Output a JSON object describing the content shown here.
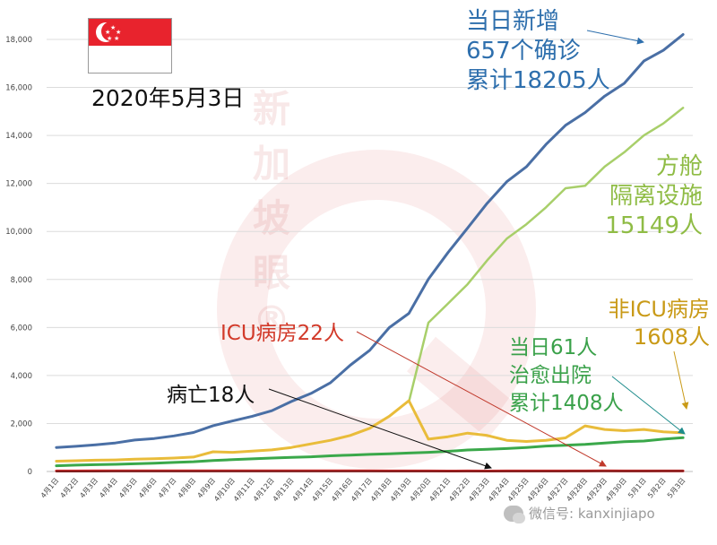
{
  "date_label": "2020年5月3日",
  "watermark": "新加坡眼®",
  "wechat_label": "微信号: kanxinjiapo",
  "annotations": {
    "total": [
      "当日新增",
      "657个确诊",
      "累计18205人"
    ],
    "dorm": [
      "方舱",
      "隔离设施",
      "15149人"
    ],
    "non_icu": [
      "非ICU病房",
      "1608人"
    ],
    "icu": "ICU病房22人",
    "discharged": [
      "当日61人",
      "治愈出院",
      "累计1408人"
    ],
    "deaths": "病亡18人"
  },
  "colors": {
    "total": "#4a6fa5",
    "dorm": "#a8cf6a",
    "non_icu": "#e9bc3a",
    "icu": "#d9302f",
    "discharged": "#3aa84a",
    "deaths": "#7a1a1a",
    "annotation_blue": "#2e6fad",
    "annotation_green": "#8fbc45",
    "annotation_gold": "#c99a17",
    "annotation_red": "#d23a2a",
    "annotation_discharged": "#3aa14a"
  },
  "chart_data": {
    "type": "line",
    "title": "",
    "xlabel": "",
    "ylabel": "",
    "ylim": [
      0,
      18000
    ],
    "yticks": [
      "0",
      "2,000",
      "4,000",
      "6,000",
      "8,000",
      "10,000",
      "12,000",
      "14,000",
      "16,000",
      "18,000"
    ],
    "grid": true,
    "categories": [
      "4月1日",
      "4月2日",
      "4月3日",
      "4月4日",
      "4月5日",
      "4月6日",
      "4月7日",
      "4月8日",
      "4月9日",
      "4月10日",
      "4月11日",
      "4月12日",
      "4月13日",
      "4月14日",
      "4月15日",
      "4月16日",
      "4月17日",
      "4月18日",
      "4月19日",
      "4月20日",
      "4月21日",
      "4月22日",
      "4月23日",
      "4月24日",
      "4月25日",
      "4月26日",
      "4月27日",
      "4月28日",
      "4月29日",
      "4月30日",
      "5月1日",
      "5月2日",
      "5月3日"
    ],
    "series": [
      {
        "key": "total",
        "values": [
          1000,
          1049,
          1114,
          1189,
          1309,
          1375,
          1481,
          1623,
          1910,
          2108,
          2299,
          2532,
          2918,
          3252,
          3699,
          4427,
          5050,
          5992,
          6588,
          8014,
          9125,
          10141,
          11178,
          12075,
          12693,
          13624,
          14423,
          14951,
          15641,
          16169,
          17101,
          17548,
          18205
        ]
      },
      {
        "key": "dorm",
        "values": [
          null,
          null,
          null,
          null,
          null,
          null,
          null,
          null,
          null,
          null,
          null,
          null,
          null,
          null,
          null,
          null,
          null,
          null,
          2900,
          6200,
          7000,
          7800,
          8800,
          9700,
          10300,
          11000,
          11800,
          11900,
          12700,
          13300,
          14000,
          14500,
          15149
        ]
      },
      {
        "key": "non_icu",
        "values": [
          430,
          450,
          470,
          480,
          510,
          530,
          560,
          600,
          820,
          800,
          850,
          900,
          1000,
          1150,
          1300,
          1500,
          1800,
          2300,
          2950,
          1350,
          1450,
          1600,
          1500,
          1300,
          1250,
          1300,
          1400,
          1900,
          1750,
          1700,
          1750,
          1650,
          1608
        ]
      },
      {
        "key": "discharged",
        "values": [
          240,
          266,
          282,
          297,
          320,
          344,
          377,
          406,
          460,
          492,
          528,
          560,
          586,
          611,
          652,
          683,
          712,
          740,
          768,
          801,
          839,
          896,
          924,
          956,
          1002,
          1060,
          1095,
          1128,
          1188,
          1244,
          1268,
          1347,
          1408
        ]
      },
      {
        "key": "icu",
        "values": [
          24,
          24,
          25,
          25,
          26,
          29,
          29,
          30,
          29,
          29,
          29,
          31,
          30,
          31,
          28,
          29,
          25,
          24,
          22,
          22,
          20,
          21,
          20,
          21,
          24,
          22,
          22,
          23,
          25,
          24,
          24,
          22,
          22
        ]
      },
      {
        "key": "deaths",
        "values": [
          3,
          4,
          5,
          6,
          6,
          6,
          6,
          6,
          6,
          7,
          8,
          8,
          8,
          9,
          10,
          10,
          11,
          11,
          11,
          11,
          11,
          12,
          12,
          12,
          12,
          12,
          12,
          14,
          15,
          15,
          16,
          18,
          18
        ]
      }
    ]
  }
}
